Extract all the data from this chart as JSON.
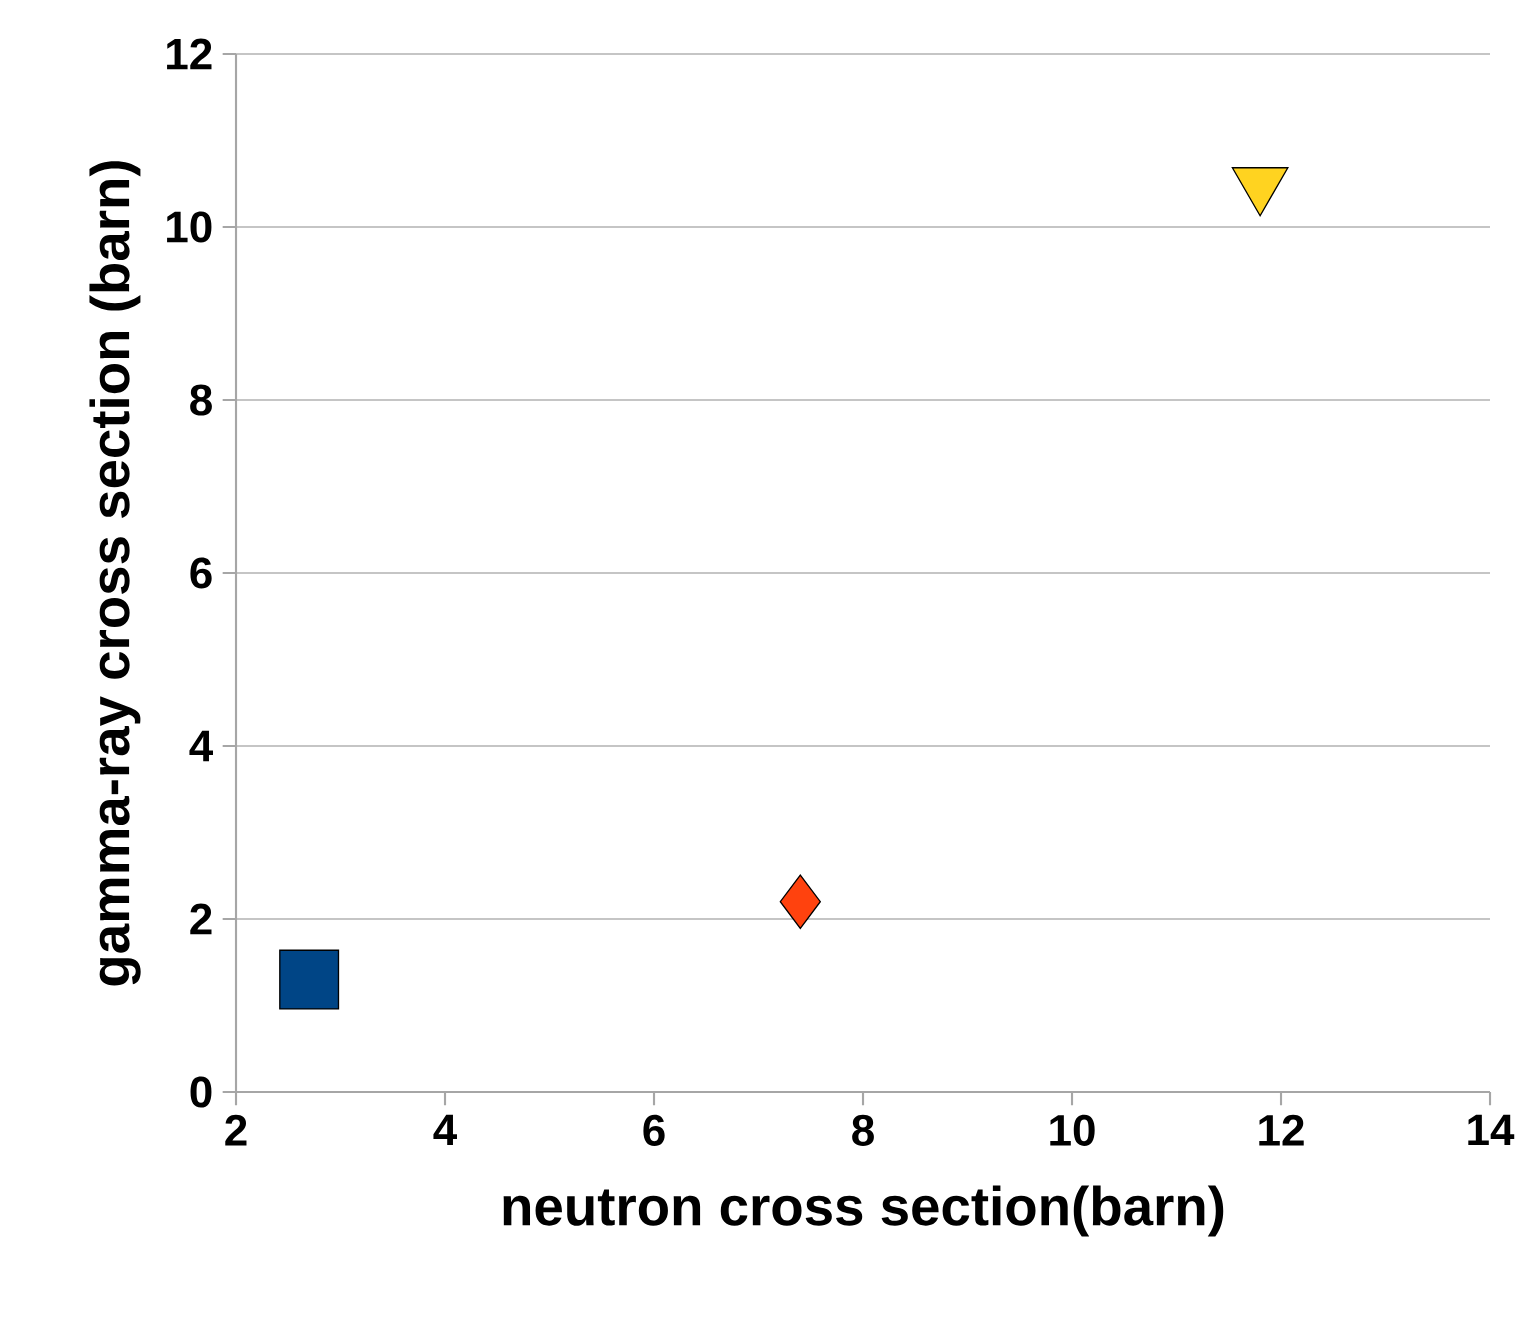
{
  "chart_data": {
    "type": "scatter",
    "xlabel": "neutron cross section(barn)",
    "ylabel": "gamma-ray cross section (barn)",
    "xlim": [
      2,
      14
    ],
    "ylim": [
      0,
      12
    ],
    "xticks": [
      2,
      4,
      6,
      8,
      10,
      12,
      14
    ],
    "yticks": [
      0,
      2,
      4,
      6,
      8,
      10,
      12
    ],
    "grid": "y",
    "series": [
      {
        "color": "#004586",
        "marker": "square",
        "x": [
          2.7
        ],
        "values": [
          1.3
        ]
      },
      {
        "color": "#ff420e",
        "marker": "diamond",
        "x": [
          7.4
        ],
        "values": [
          2.2
        ]
      },
      {
        "color": "#ffd320",
        "marker": "triangle",
        "x": [
          11.8
        ],
        "values": [
          10.5
        ]
      }
    ]
  }
}
